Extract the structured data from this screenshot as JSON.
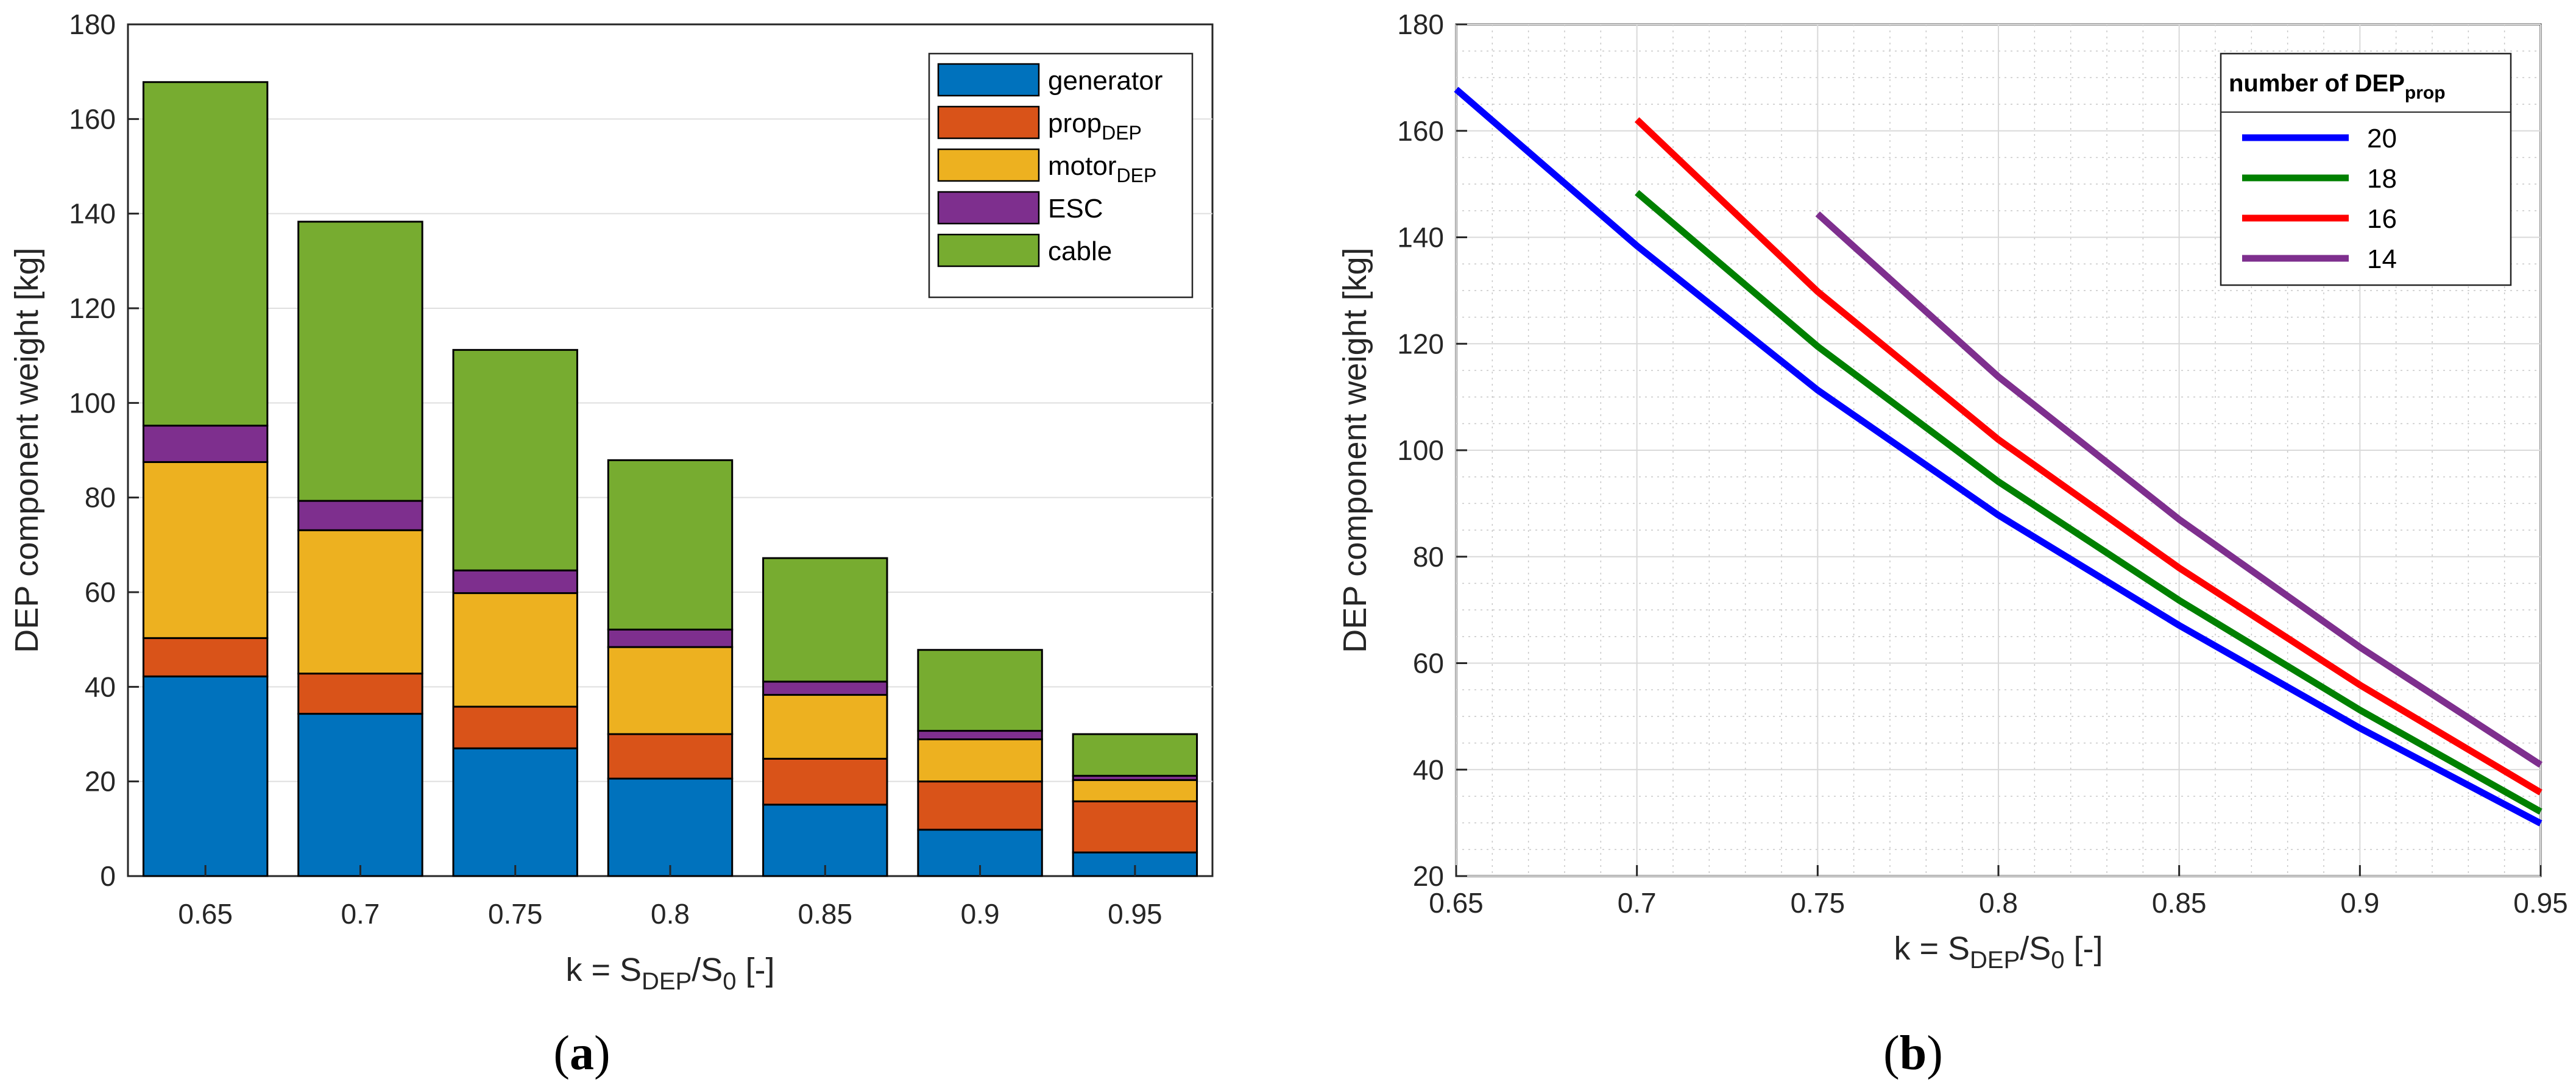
{
  "chart_data": [
    {
      "type": "bar",
      "stacked": true,
      "panel_label": "(a)",
      "panel_letter": "a",
      "categories": [
        "0.65",
        "0.7",
        "0.75",
        "0.8",
        "0.85",
        "0.9",
        "0.95"
      ],
      "ylim": [
        0,
        180
      ],
      "yticks": [
        0,
        20,
        40,
        60,
        80,
        100,
        120,
        140,
        160,
        180
      ],
      "ylabel": "DEP component weight [kg]",
      "xlabel": {
        "base": "k = S",
        "sub1": "DEP",
        "mid": "/S",
        "sub2": "0",
        "tail": " [-]"
      },
      "grid": true,
      "legend_position": "top-right",
      "series": [
        {
          "name": "generator",
          "legend_base": "generator",
          "legend_sub": "",
          "color": "#0072BD",
          "values": [
            42.2,
            34.3,
            27.0,
            20.6,
            15.1,
            9.8,
            5.0
          ]
        },
        {
          "name": "propDEP",
          "legend_base": "prop",
          "legend_sub": "DEP",
          "color": "#D95319",
          "values": [
            8.1,
            8.5,
            8.8,
            9.4,
            9.7,
            10.2,
            10.8
          ]
        },
        {
          "name": "motorDEP",
          "legend_base": "motor",
          "legend_sub": "DEP",
          "color": "#EDB120",
          "values": [
            37.2,
            30.3,
            24.0,
            18.4,
            13.5,
            8.9,
            4.5
          ]
        },
        {
          "name": "ESC",
          "legend_base": "ESC",
          "legend_sub": "",
          "color": "#7E2F8E",
          "values": [
            7.7,
            6.2,
            4.8,
            3.7,
            2.8,
            1.8,
            0.9
          ]
        },
        {
          "name": "cable",
          "legend_base": "cable",
          "legend_sub": "",
          "color": "#77AC30",
          "values": [
            72.6,
            59.0,
            46.6,
            35.8,
            26.1,
            17.1,
            8.8
          ]
        }
      ]
    },
    {
      "type": "line",
      "panel_label": "(b)",
      "panel_letter": "b",
      "xlim": [
        0.65,
        0.95
      ],
      "ylim": [
        20,
        180
      ],
      "xticks": [
        0.65,
        0.7,
        0.75,
        0.8,
        0.85,
        0.9,
        0.95
      ],
      "xticklabels": [
        "0.65",
        "0.7",
        "0.75",
        "0.8",
        "0.85",
        "0.9",
        "0.95"
      ],
      "yticks": [
        20,
        40,
        60,
        80,
        100,
        120,
        140,
        160,
        180
      ],
      "ylabel": "DEP component weight [kg]",
      "xlabel": {
        "base": "k = S",
        "sub1": "DEP",
        "mid": "/S",
        "sub2": "0",
        "tail": " [-]"
      },
      "grid": true,
      "minor_grid": true,
      "legend_position": "top-right",
      "legend_title": {
        "base": "number of DEP",
        "sub": "prop"
      },
      "series": [
        {
          "name": "20",
          "color": "#0000FF",
          "x": [
            0.65,
            0.7,
            0.75,
            0.8,
            0.85,
            0.9,
            0.95
          ],
          "y": [
            167.8,
            138.4,
            111.3,
            87.8,
            67.1,
            47.8,
            29.9
          ]
        },
        {
          "name": "18",
          "color": "#008000",
          "x": [
            0.7,
            0.75,
            0.8,
            0.85,
            0.9,
            0.95
          ],
          "y": [
            148.4,
            119.5,
            94.1,
            71.8,
            51.2,
            32.1
          ]
        },
        {
          "name": "16",
          "color": "#FF0000",
          "x": [
            0.7,
            0.75,
            0.8,
            0.85,
            0.9,
            0.95
          ],
          "y": [
            162.1,
            129.8,
            102.0,
            77.9,
            55.9,
            35.7
          ]
        },
        {
          "name": "14",
          "color": "#7E2F8E",
          "x": [
            0.75,
            0.8,
            0.85,
            0.9,
            0.95
          ],
          "y": [
            144.4,
            113.8,
            87.0,
            63.0,
            40.9
          ]
        }
      ]
    }
  ]
}
